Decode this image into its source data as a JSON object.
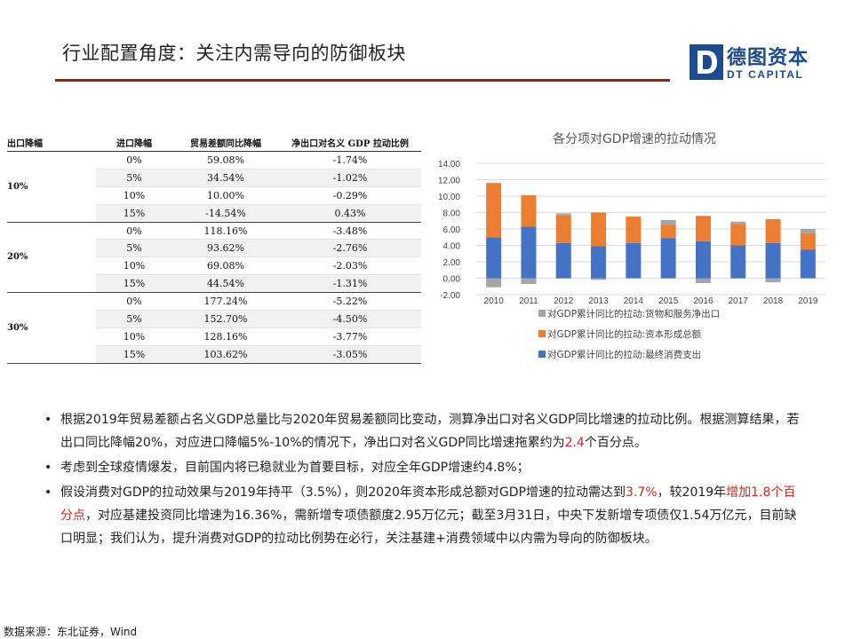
{
  "header": {
    "title": "行业配置角度：关注内需导向的防御板块",
    "logo_cn": "德图资本",
    "logo_en": "DT CAPITAL",
    "brand_color": "#1d4b8f",
    "rule_color": "#9b1d20"
  },
  "table": {
    "headers": [
      "出口降幅",
      "进口降幅",
      "贸易差额同比降幅",
      "净出口对名义 GDP 拉动比例"
    ],
    "groups": [
      {
        "label": "10%",
        "rows": [
          [
            "0%",
            "59.08%",
            "-1.74%"
          ],
          [
            "5%",
            "34.54%",
            "-1.02%"
          ],
          [
            "10%",
            "10.00%",
            "-0.29%"
          ],
          [
            "15%",
            "-14.54%",
            "0.43%"
          ]
        ]
      },
      {
        "label": "20%",
        "rows": [
          [
            "0%",
            "118.16%",
            "-3.48%"
          ],
          [
            "5%",
            "93.62%",
            "-2.76%"
          ],
          [
            "10%",
            "69.08%",
            "-2.03%"
          ],
          [
            "15%",
            "44.54%",
            "-1.31%"
          ]
        ]
      },
      {
        "label": "30%",
        "rows": [
          [
            "0%",
            "177.24%",
            "-5.22%"
          ],
          [
            "5%",
            "152.70%",
            "-4.50%"
          ],
          [
            "10%",
            "128.16%",
            "-3.77%"
          ],
          [
            "15%",
            "103.62%",
            "-3.05%"
          ]
        ]
      }
    ]
  },
  "chart_data": {
    "type": "bar",
    "stacked": true,
    "title": "各分项对GDP增速的拉动情况",
    "categories": [
      "2010",
      "2011",
      "2012",
      "2013",
      "2014",
      "2015",
      "2016",
      "2017",
      "2018",
      "2019"
    ],
    "series": [
      {
        "name": "对GDP累计同比的拉动:最终消费支出",
        "color": "#4472c4",
        "values": [
          5.0,
          6.3,
          4.3,
          3.9,
          4.3,
          4.9,
          4.5,
          4.0,
          4.3,
          3.5
        ]
      },
      {
        "name": "对GDP累计同比的拉动:资本形成总额",
        "color": "#ed7d31",
        "values": [
          6.6,
          3.8,
          3.4,
          4.1,
          3.2,
          1.6,
          3.1,
          2.6,
          2.9,
          2.0
        ]
      },
      {
        "name": "对GDP累计同比的拉动:货物和服务净出口",
        "color": "#a5a5a5",
        "values": [
          -1.1,
          -0.7,
          0.2,
          -0.2,
          0.0,
          0.6,
          -0.6,
          0.3,
          -0.5,
          0.5
        ]
      }
    ],
    "legend_order": [
      2,
      1,
      0
    ],
    "ylim": [
      -2,
      14
    ],
    "yticks": [
      "14.00",
      "12.00",
      "10.00",
      "8.00",
      "6.00",
      "4.00",
      "2.00",
      "0.00",
      "-2.00"
    ],
    "grid": true,
    "legend_position": "bottom"
  },
  "bullets": [
    {
      "parts": [
        {
          "text": "根据2019年贸易差额占名义GDP总量比与2020年贸易差额同比变动，测算净出口对名义GDP同比增速的拉动比例。根据测算结果，若出口同比降幅20%，对应进口降幅5%-10%的情况下，净出口对名义GDP同比增速拖累约为"
        },
        {
          "text": "2.4",
          "red": true
        },
        {
          "text": "个百分点。"
        }
      ]
    },
    {
      "parts": [
        {
          "text": "考虑到全球疫情爆发，目前国内将已稳就业为首要目标，对应全年GDP增速约4.8%；"
        }
      ]
    },
    {
      "parts": [
        {
          "text": "假设消费对GDP的拉动效果与2019年持平（3.5%），则2020年资本形成总额对GDP增速的拉动需达到"
        },
        {
          "text": "3.7%",
          "red": true
        },
        {
          "text": "，较2019年"
        },
        {
          "text": "增加1.8个百分点",
          "red": true
        },
        {
          "text": "，对应基建投资同比增速为16.36%，需新增专项债额度2.95万亿元；截至3月31日，中央下发新增专项债仅1.54万亿元，目前缺口明显；我们认为，提升消费对GDP的拉动比例势在必行，关注基建+消费领域中以内需为导向的防御板块。"
        }
      ]
    }
  ],
  "bullet_symbol": "•",
  "source": "数据来源：东北证券，Wind"
}
